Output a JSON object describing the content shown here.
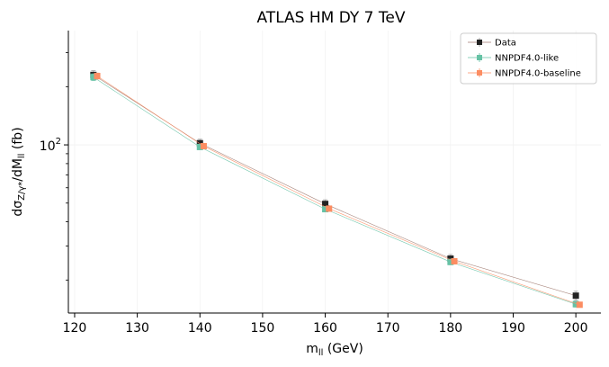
{
  "chart_data": {
    "type": "line",
    "title": "ATLAS HM DY 7 TeV",
    "xlabel": "m_ll (GeV)",
    "xlabel_main": "m",
    "xlabel_sub": "ll",
    "xlabel_unit": " (GeV)",
    "ylabel": "dσ_Z/γ*/dM_ll (fb)",
    "ylabel_main": "dσ",
    "ylabel_sub1": "Z/γ*",
    "ylabel_mid": "/dM",
    "ylabel_sub2": "ll",
    "ylabel_unit": " (fb)",
    "xscale": "linear",
    "yscale": "log",
    "xlim": [
      119,
      204
    ],
    "ylim": [
      13.5,
      390
    ],
    "xticks": [
      120,
      130,
      140,
      150,
      160,
      170,
      180,
      190,
      200
    ],
    "xtick_labels": [
      "120",
      "130",
      "140",
      "150",
      "160",
      "170",
      "180",
      "190",
      "200"
    ],
    "yticks_major": [
      100
    ],
    "ytick_major_labels": [
      {
        "base": "10",
        "exp": "2"
      }
    ],
    "yticks_minor": [
      20,
      30,
      40,
      50,
      60,
      70,
      80,
      90,
      200,
      300
    ],
    "grid": true,
    "legend_position": "top-right",
    "series": [
      {
        "name": "Data",
        "color": "#222222",
        "line_color": "#a07a70",
        "marker": "square",
        "x_offset": 0,
        "x": [
          123,
          140,
          160,
          180,
          200
        ],
        "y": [
          230,
          102,
          49.5,
          25.8,
          16.6
        ],
        "yerr": [
          12,
          5,
          2.5,
          1.3,
          0.9
        ]
      },
      {
        "name": "NNPDF4.0-like",
        "color": "#66c2a5",
        "line_color": "#66c2a5",
        "marker": "square",
        "x_offset": 0,
        "x": [
          123,
          140,
          160,
          180,
          200
        ],
        "y": [
          224,
          97.5,
          46.5,
          24.8,
          15.0
        ],
        "yerr": [
          9,
          3,
          1.2,
          0.8,
          0.5
        ]
      },
      {
        "name": "NNPDF4.0-baseline",
        "color": "#fc8d62",
        "line_color": "#fc8d62",
        "marker": "square",
        "x_offset": 0.6,
        "x": [
          123,
          140,
          160,
          180,
          200
        ],
        "y": [
          227,
          98.5,
          46.8,
          25.0,
          14.9
        ],
        "yerr": [
          8,
          2.5,
          1,
          0.7,
          0.4
        ]
      }
    ]
  }
}
